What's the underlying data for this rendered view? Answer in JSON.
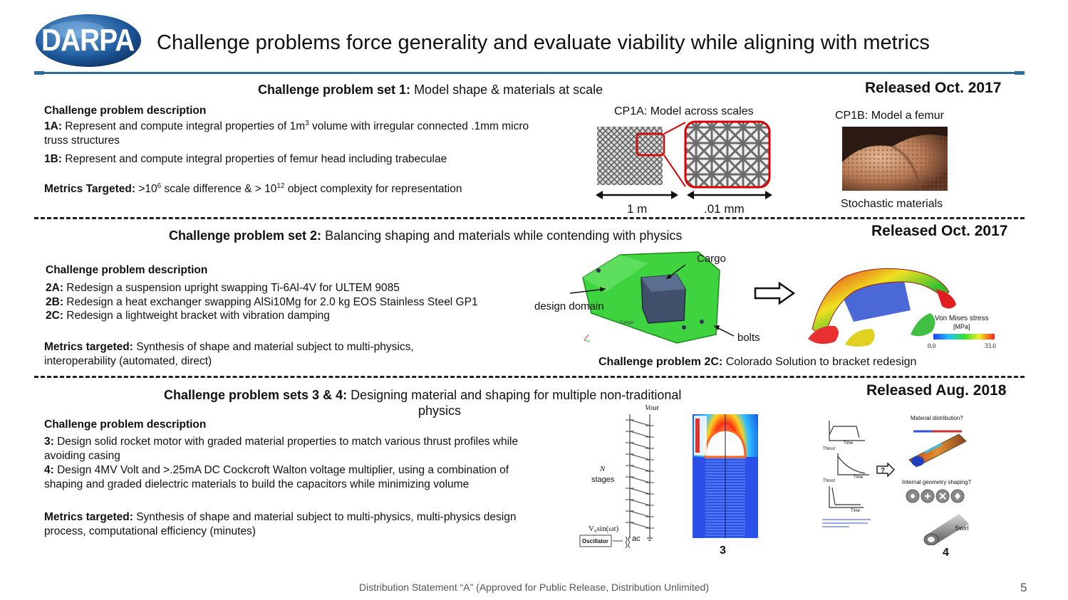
{
  "header": {
    "logo_text": "DARPA",
    "title": "Challenge problems force generality and evaluate viability while aligning with metrics"
  },
  "set1": {
    "heading_bold": "Challenge problem set 1:",
    "heading_rest": " Model shape & materials at scale",
    "released": "Released Oct. 2017",
    "desc_heading": "Challenge problem description",
    "item_1a_label": "1A:",
    "item_1a_pre": " Represent and compute integral properties of 1m",
    "item_1a_sup": "3",
    "item_1a_post": " volume with irregular connected .1mm micro truss structures",
    "item_1b_label": "1B:",
    "item_1b_text": " Represent and compute integral properties of femur head including trabeculae",
    "metrics_label": "Metrics Targeted:",
    "metrics_pre": " >10",
    "metrics_sup1": "6",
    "metrics_mid": " scale difference & > 10",
    "metrics_sup2": "12",
    "metrics_post": " object complexity for representation",
    "cp1a_caption": "CP1A: Model across scales",
    "scale_1m": "1 m",
    "scale_01mm": ".01 mm",
    "cp1b_caption": "CP1B: Model a femur",
    "femur_caption": "Stochastic materials"
  },
  "set2": {
    "heading_bold": "Challenge problem set 2:",
    "heading_rest": " Balancing shaping and materials while contending with physics",
    "released": "Released Oct. 2017",
    "desc_heading": "Challenge problem description",
    "item_2a_label": "2A:",
    "item_2a_text": " Redesign a suspension upright swapping Ti-6Al-4V for ULTEM 9085",
    "item_2b_label": "2B:",
    "item_2b_text": " Redesign a heat exchanger swapping AlSi10Mg for 2.0 kg EOS Stainless Steel GP1",
    "item_2c_label": "2C:",
    "item_2c_text": " Redesign a lightweight bracket with vibration damping",
    "metrics_label": "Metrics targeted:",
    "metrics_text": " Synthesis of shape and material subject to multi-physics, interoperability (automated, direct)",
    "label_cargo": "Cargo",
    "label_design_domain": "design domain",
    "label_bolts": "bolts",
    "label_cargo_small": "Cargo",
    "legend_title": "Von Mises stress",
    "legend_unit": "[MPa]",
    "legend_min": "0.0",
    "legend_max": "33.0",
    "caption_bold": "Challenge problem 2C:",
    "caption_rest": " Colorado Solution to bracket redesign"
  },
  "set34": {
    "heading_bold": "Challenge problem sets 3 & 4:",
    "heading_rest_line1": " Designing material and shaping for multiple non-traditional",
    "heading_rest_line2": "physics",
    "released": "Released Aug. 2018",
    "desc_heading": "Challenge problem description",
    "item_3_label": "3:",
    "item_3_text": " Design solid rocket motor with graded material properties to match various thrust profiles while avoiding casing",
    "item_4_label": "4:",
    "item_4_text": " Design 4MV Volt and >.25mA DC Cockcroft Walton voltage multiplier, using a combination of shaping and graded dielectric materials to build the capacitors while minimizing volume",
    "metrics_label": "Metrics targeted:",
    "metrics_text": " Synthesis of shape and material subject to multi-physics, multi-physics design process, computational efficiency (minutes)",
    "circuit_vout": "Vout",
    "circuit_n": "N",
    "circuit_stages": "stages",
    "circuit_vin": "V₀sin(ωt)",
    "circuit_osc": "Oscillator",
    "circuit_ac": "ac",
    "fig3_label": "3",
    "fig4_label": "4",
    "thrust_label": "Thrust",
    "time_label": "Time",
    "material_dist": "Material distribution?",
    "internal_geom": "Internal geometry shaping?",
    "swirl": "Swirl"
  },
  "footer": {
    "statement": "Distribution Statement “A” (Approved for Public Release, Distribution Unlimited)",
    "page_number": "5"
  }
}
